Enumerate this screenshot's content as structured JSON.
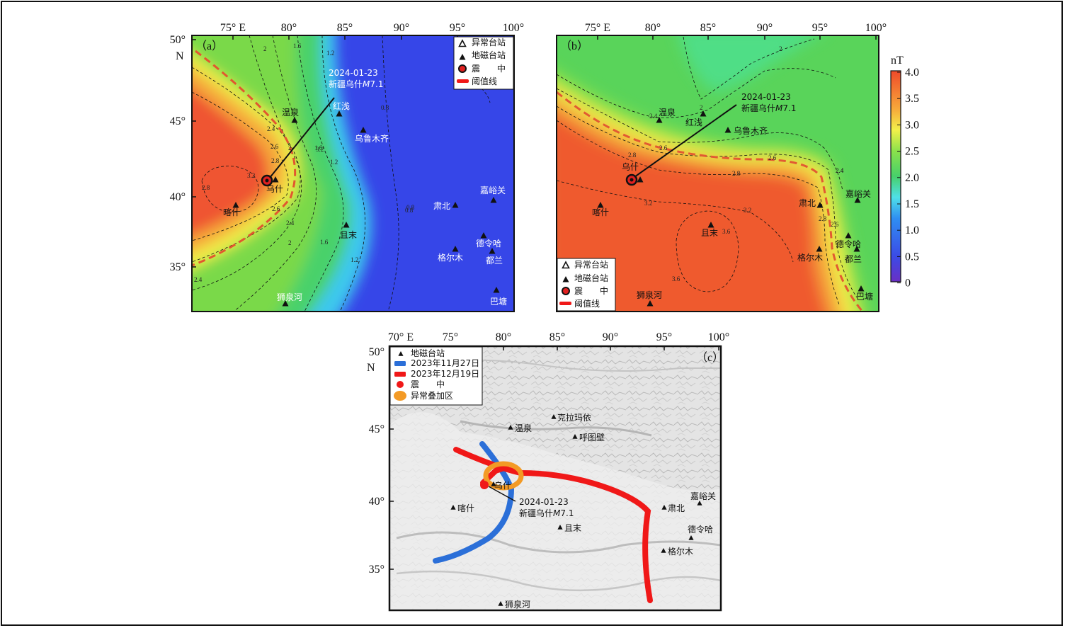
{
  "panel_a": {
    "label": "（a）",
    "lon_ticks": [
      "75° E",
      "80°",
      "85°",
      "90°",
      "95°",
      "100°"
    ],
    "lat_ticks": [
      "50°",
      "45°",
      "40°",
      "35°"
    ],
    "north": "N",
    "legend": [
      "异常台站",
      "地磁台站",
      "震　　中",
      "阈值线"
    ],
    "annotation": [
      "2024-01-23",
      "新疆乌什M7.1"
    ],
    "stations": [
      "温泉",
      "红浅",
      "乌鲁木齐",
      "乌什",
      "喀什",
      "且末",
      "肃北",
      "嘉峪关",
      "德令哈",
      "格尔木",
      "都兰",
      "狮泉河",
      "巴塘"
    ],
    "contours": [
      "2",
      "1.6",
      "1.2",
      "0.8",
      "2.4",
      "2.6",
      "2.8",
      "3.2",
      "2",
      "2.4",
      "2.6",
      "2.8",
      "3.2",
      "1.6",
      "1.2",
      "2",
      "1.6",
      "1.2",
      "0.8",
      "2.4",
      "0.8"
    ]
  },
  "panel_b": {
    "label": "（b）",
    "lon_ticks": [
      "75° E",
      "80°",
      "85°",
      "90°",
      "95°",
      "100°"
    ],
    "legend": [
      "异常台站",
      "地磁台站",
      "震　　中",
      "阈值线"
    ],
    "annotation": [
      "2024-01-23",
      "新疆乌什M7.1"
    ],
    "stations": [
      "温泉",
      "红浅",
      "乌鲁木齐",
      "乌什",
      "喀什",
      "且末",
      "肃北",
      "嘉峪关",
      "德令哈",
      "格尔木",
      "都兰",
      "狮泉河",
      "巴塘"
    ],
    "contours": [
      "2",
      "2",
      "2.4",
      "2.6",
      "2.8",
      "2.6",
      "2.4",
      "2.8",
      "3.2",
      "3.2",
      "3.6",
      "3.6",
      "2.8",
      "2.6",
      "2.4"
    ]
  },
  "colorbar": {
    "unit": "nT",
    "ticks": [
      "4.0",
      "3.5",
      "3.0",
      "2.5",
      "2.0",
      "1.5",
      "1.0",
      "0.5",
      "0"
    ]
  },
  "panel_c": {
    "label": "（c）",
    "lon_ticks": [
      "70° E",
      "75°",
      "80°",
      "85°",
      "90°",
      "95°",
      "100°"
    ],
    "lat_ticks": [
      "50°",
      "45°",
      "40°",
      "35°"
    ],
    "north": "N",
    "legend": [
      "地磁台站",
      "2023年11月27日",
      "2023年12月19日",
      "震　　中",
      "异常叠加区"
    ],
    "annotation": [
      "2024-01-23",
      "新疆乌什M7.1"
    ],
    "stations": [
      "克拉玛依",
      "温泉",
      "呼图壁",
      "乌什",
      "喀什",
      "且末",
      "肃北",
      "嘉峪关",
      "德令哈",
      "格尔木",
      "狮泉河"
    ],
    "colors": {
      "blue_line": "#2b6fd8",
      "red_line": "#f01818",
      "overlap": "#f39a25"
    }
  }
}
